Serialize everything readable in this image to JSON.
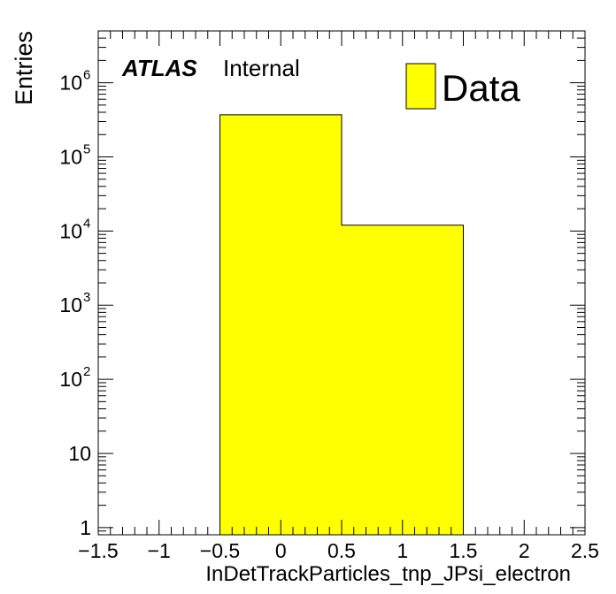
{
  "chart_data": {
    "type": "bar",
    "style": "histogram",
    "bins": [
      {
        "low": -0.5,
        "high": 0.5,
        "value": 370000
      },
      {
        "low": 0.5,
        "high": 1.5,
        "value": 12000
      }
    ],
    "xlabel": "InDetTrackParticles_tnp_JPsi_electron",
    "ylabel": "Entries",
    "xlim": [
      -1.5,
      2.5
    ],
    "ylim": [
      0.8,
      5000000
    ],
    "yscale": "log",
    "x_ticks": [
      {
        "value": -1.5,
        "label": "−1.5"
      },
      {
        "value": -1,
        "label": "−1"
      },
      {
        "value": -0.5,
        "label": "−0.5"
      },
      {
        "value": 0,
        "label": "0"
      },
      {
        "value": 0.5,
        "label": "0.5"
      },
      {
        "value": 1,
        "label": "1"
      },
      {
        "value": 1.5,
        "label": "1.5"
      },
      {
        "value": 2,
        "label": "2"
      },
      {
        "value": 2.5,
        "label": "2.5"
      }
    ],
    "y_ticks": [
      {
        "value": 1,
        "base": "1",
        "exp": ""
      },
      {
        "value": 10,
        "base": "10",
        "exp": ""
      },
      {
        "value": 100,
        "base": "10",
        "exp": "2"
      },
      {
        "value": 1000,
        "base": "10",
        "exp": "3"
      },
      {
        "value": 10000,
        "base": "10",
        "exp": "4"
      },
      {
        "value": 100000,
        "base": "10",
        "exp": "5"
      },
      {
        "value": 1000000,
        "base": "10",
        "exp": "6"
      }
    ],
    "legend": {
      "entries": [
        "Data"
      ],
      "placement": "top-right"
    },
    "annotation": {
      "experiment": "ATLAS",
      "status": "Internal"
    },
    "colors": {
      "fill": "#ffff00",
      "edge": "#000000"
    },
    "grid": false
  }
}
